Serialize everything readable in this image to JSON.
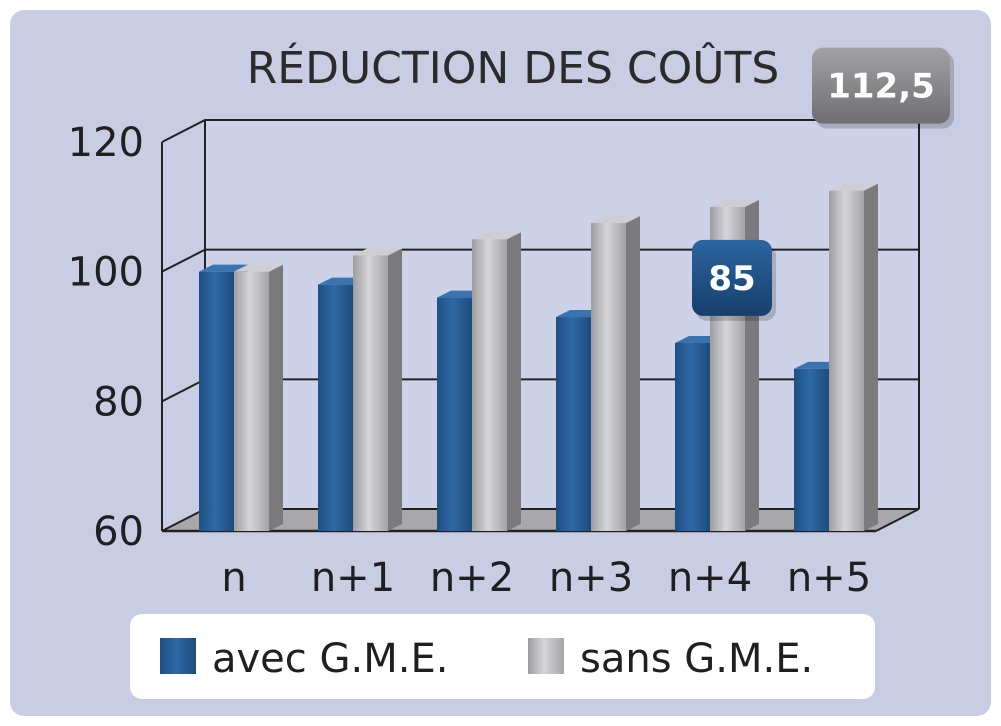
{
  "chart_data": {
    "type": "bar",
    "title": "RÉDUCTION DES COÛTS",
    "categories": [
      "n",
      "n+1",
      "n+2",
      "n+3",
      "n+4",
      "n+5"
    ],
    "series": [
      {
        "name": "avec G.M.E.",
        "values": [
          100,
          98,
          96,
          93,
          89,
          85
        ],
        "color": "#2a5f96"
      },
      {
        "name": "sans G.M.E.",
        "values": [
          100,
          102.5,
          105,
          107.5,
          110,
          112.5
        ],
        "color": "#b4b4b4"
      }
    ],
    "yticks": [
      "60",
      "80",
      "100",
      "120"
    ],
    "ylim": [
      60,
      120
    ],
    "grid": true,
    "legend": "bottom",
    "callouts": [
      {
        "series": "avec G.M.E.",
        "category": "n+5",
        "text": "85",
        "color": "#1f4f86"
      },
      {
        "series": "sans G.M.E.",
        "category": "n+5",
        "text": "112,5",
        "color": "#8a8a8c"
      }
    ],
    "background": "#c9cde4"
  }
}
